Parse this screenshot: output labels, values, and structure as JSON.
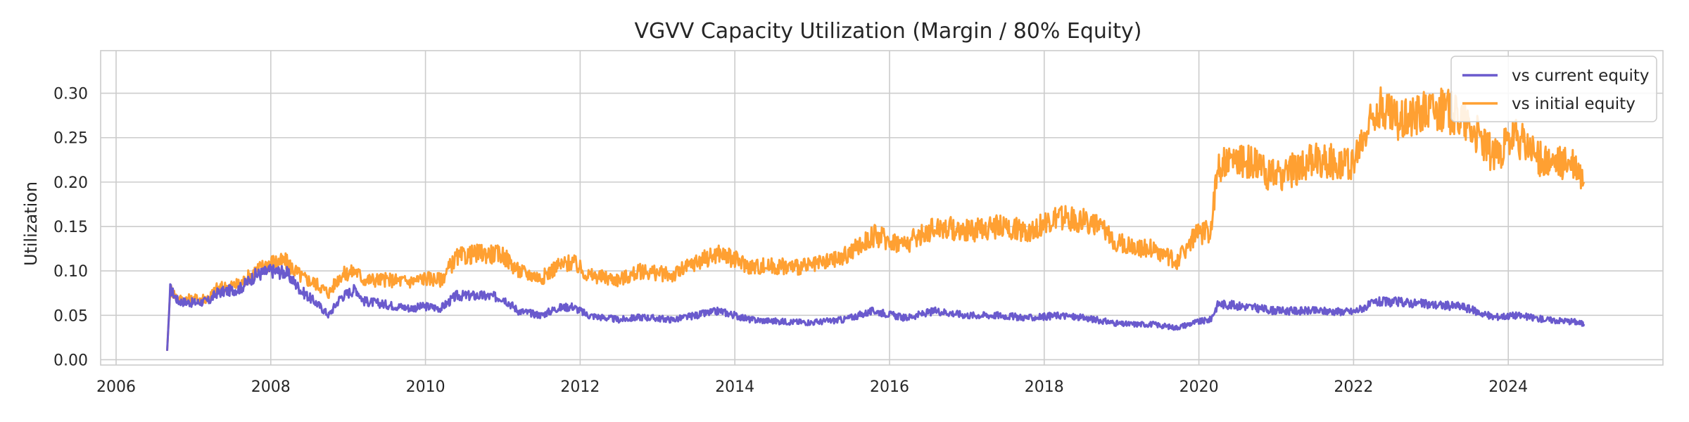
{
  "chart_data": {
    "type": "line",
    "title": "VGVV Capacity Utilization (Margin / 80% Equity)",
    "xlabel": "",
    "ylabel": "Utilization",
    "x_ticks": [
      "2006",
      "2008",
      "2010",
      "2012",
      "2014",
      "2016",
      "2018",
      "2020",
      "2022",
      "2024"
    ],
    "y_ticks": [
      "0.00",
      "0.05",
      "0.10",
      "0.15",
      "0.20",
      "0.25",
      "0.30"
    ],
    "xlim": [
      2005.8,
      2026.0
    ],
    "ylim": [
      -0.006,
      0.348
    ],
    "grid": true,
    "legend_position": "top-right",
    "series": [
      {
        "name": "vs current equity",
        "color": "#6a5acd",
        "points": [
          [
            2006.66,
            0.01
          ],
          [
            2006.7,
            0.08
          ],
          [
            2006.8,
            0.066
          ],
          [
            2007.0,
            0.064
          ],
          [
            2007.2,
            0.066
          ],
          [
            2007.3,
            0.075
          ],
          [
            2007.6,
            0.08
          ],
          [
            2007.8,
            0.095
          ],
          [
            2008.0,
            0.1
          ],
          [
            2008.2,
            0.098
          ],
          [
            2008.4,
            0.077
          ],
          [
            2008.6,
            0.063
          ],
          [
            2008.75,
            0.05
          ],
          [
            2008.9,
            0.07
          ],
          [
            2009.1,
            0.08
          ],
          [
            2009.2,
            0.066
          ],
          [
            2009.5,
            0.062
          ],
          [
            2009.8,
            0.058
          ],
          [
            2010.0,
            0.06
          ],
          [
            2010.2,
            0.058
          ],
          [
            2010.4,
            0.072
          ],
          [
            2010.7,
            0.072
          ],
          [
            2011.0,
            0.07
          ],
          [
            2011.2,
            0.055
          ],
          [
            2011.5,
            0.05
          ],
          [
            2011.7,
            0.058
          ],
          [
            2011.9,
            0.06
          ],
          [
            2012.1,
            0.05
          ],
          [
            2012.5,
            0.045
          ],
          [
            2012.8,
            0.048
          ],
          [
            2013.2,
            0.045
          ],
          [
            2013.5,
            0.05
          ],
          [
            2013.8,
            0.055
          ],
          [
            2014.2,
            0.045
          ],
          [
            2014.6,
            0.043
          ],
          [
            2015.0,
            0.042
          ],
          [
            2015.4,
            0.045
          ],
          [
            2015.8,
            0.055
          ],
          [
            2016.2,
            0.047
          ],
          [
            2016.6,
            0.055
          ],
          [
            2017.0,
            0.05
          ],
          [
            2017.4,
            0.05
          ],
          [
            2017.8,
            0.047
          ],
          [
            2018.2,
            0.05
          ],
          [
            2018.6,
            0.046
          ],
          [
            2019.0,
            0.04
          ],
          [
            2019.4,
            0.04
          ],
          [
            2019.7,
            0.036
          ],
          [
            2019.95,
            0.042
          ],
          [
            2020.15,
            0.045
          ],
          [
            2020.25,
            0.063
          ],
          [
            2020.6,
            0.06
          ],
          [
            2021.0,
            0.055
          ],
          [
            2021.5,
            0.055
          ],
          [
            2022.0,
            0.054
          ],
          [
            2022.3,
            0.065
          ],
          [
            2022.6,
            0.065
          ],
          [
            2023.0,
            0.062
          ],
          [
            2023.4,
            0.06
          ],
          [
            2023.8,
            0.048
          ],
          [
            2024.1,
            0.05
          ],
          [
            2024.5,
            0.045
          ],
          [
            2024.85,
            0.043
          ],
          [
            2024.98,
            0.04
          ]
        ]
      },
      {
        "name": "vs initial equity",
        "color": "#ffa032",
        "points": [
          [
            2006.66,
            0.01
          ],
          [
            2006.7,
            0.08
          ],
          [
            2006.8,
            0.068
          ],
          [
            2007.0,
            0.068
          ],
          [
            2007.2,
            0.07
          ],
          [
            2007.3,
            0.08
          ],
          [
            2007.6,
            0.085
          ],
          [
            2007.8,
            0.1
          ],
          [
            2008.0,
            0.11
          ],
          [
            2008.2,
            0.11
          ],
          [
            2008.4,
            0.093
          ],
          [
            2008.6,
            0.085
          ],
          [
            2008.75,
            0.075
          ],
          [
            2008.9,
            0.095
          ],
          [
            2009.1,
            0.1
          ],
          [
            2009.2,
            0.09
          ],
          [
            2009.5,
            0.09
          ],
          [
            2009.8,
            0.088
          ],
          [
            2010.0,
            0.092
          ],
          [
            2010.2,
            0.09
          ],
          [
            2010.4,
            0.115
          ],
          [
            2010.7,
            0.12
          ],
          [
            2011.0,
            0.118
          ],
          [
            2011.2,
            0.1
          ],
          [
            2011.5,
            0.092
          ],
          [
            2011.7,
            0.105
          ],
          [
            2011.9,
            0.11
          ],
          [
            2012.1,
            0.095
          ],
          [
            2012.5,
            0.09
          ],
          [
            2012.8,
            0.1
          ],
          [
            2013.2,
            0.095
          ],
          [
            2013.5,
            0.11
          ],
          [
            2013.8,
            0.12
          ],
          [
            2014.2,
            0.105
          ],
          [
            2014.6,
            0.105
          ],
          [
            2015.0,
            0.105
          ],
          [
            2015.4,
            0.115
          ],
          [
            2015.8,
            0.14
          ],
          [
            2016.2,
            0.13
          ],
          [
            2016.6,
            0.15
          ],
          [
            2017.0,
            0.145
          ],
          [
            2017.4,
            0.15
          ],
          [
            2017.8,
            0.145
          ],
          [
            2018.2,
            0.16
          ],
          [
            2018.6,
            0.155
          ],
          [
            2019.0,
            0.13
          ],
          [
            2019.4,
            0.125
          ],
          [
            2019.7,
            0.11
          ],
          [
            2019.95,
            0.14
          ],
          [
            2020.15,
            0.145
          ],
          [
            2020.25,
            0.22
          ],
          [
            2020.6,
            0.225
          ],
          [
            2021.0,
            0.205
          ],
          [
            2021.5,
            0.225
          ],
          [
            2022.0,
            0.22
          ],
          [
            2022.3,
            0.285
          ],
          [
            2022.6,
            0.27
          ],
          [
            2023.0,
            0.285
          ],
          [
            2023.4,
            0.275
          ],
          [
            2023.8,
            0.23
          ],
          [
            2024.1,
            0.25
          ],
          [
            2024.5,
            0.22
          ],
          [
            2024.85,
            0.22
          ],
          [
            2024.98,
            0.2
          ]
        ]
      }
    ]
  }
}
